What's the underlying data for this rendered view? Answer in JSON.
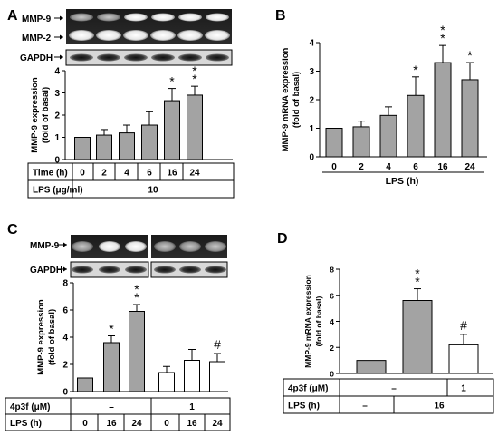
{
  "figure": {
    "panel_letters": [
      "A",
      "B",
      "C",
      "D"
    ],
    "blot_labels": {
      "A": [
        "MMP-9",
        "MMP-2",
        "GAPDH"
      ],
      "C": [
        "MMP-9",
        "GAPDH"
      ]
    }
  },
  "chart_data": [
    {
      "panel": "A",
      "type": "bar",
      "ylabel": "MMP-9 expression\n(fold of basal)",
      "ylim": [
        0,
        4
      ],
      "yticks": [
        "0",
        "1",
        "2",
        "3",
        "4"
      ],
      "categories": [
        "0",
        "2",
        "4",
        "6",
        "16",
        "24"
      ],
      "values": [
        1.0,
        1.1,
        1.2,
        1.55,
        2.65,
        2.9
      ],
      "errors": [
        0,
        0.25,
        0.35,
        0.6,
        0.55,
        0.4
      ],
      "markers": [
        "",
        "",
        "",
        "",
        "*",
        "**"
      ],
      "table": [
        {
          "label": "Time (h)",
          "cells": [
            "0",
            "2",
            "4",
            "6",
            "16",
            "24"
          ]
        },
        {
          "label": "LPS (μg/ml)",
          "cells": [
            "10"
          ]
        }
      ],
      "bar_color": "#a3a3a3"
    },
    {
      "panel": "B",
      "type": "bar",
      "ylabel": "MMP-9 mRNA expression\n(fold of basal)",
      "xlabel": "LPS (h)",
      "ylim": [
        0,
        4
      ],
      "yticks": [
        "0",
        "1",
        "2",
        "3",
        "4"
      ],
      "categories": [
        "0",
        "2",
        "4",
        "6",
        "16",
        "24"
      ],
      "values": [
        1.0,
        1.05,
        1.45,
        2.15,
        3.3,
        2.7
      ],
      "errors": [
        0,
        0.2,
        0.3,
        0.65,
        0.6,
        0.6
      ],
      "markers": [
        "",
        "",
        "",
        "*",
        "**",
        "*"
      ],
      "bar_color": "#a3a3a3"
    },
    {
      "panel": "C",
      "type": "bar",
      "ylabel": "MMP-9 expression\n(fold of basal)",
      "ylim": [
        0,
        8
      ],
      "yticks": [
        "0",
        "2",
        "4",
        "6",
        "8"
      ],
      "categories": [
        "0",
        "16",
        "24",
        "0",
        "16",
        "24"
      ],
      "values": [
        1.0,
        3.6,
        5.9,
        1.4,
        2.3,
        2.2
      ],
      "errors": [
        0,
        0.5,
        0.5,
        0.45,
        0.8,
        0.6
      ],
      "fills": [
        "gray",
        "gray",
        "gray",
        "white",
        "white",
        "white"
      ],
      "markers": [
        "",
        "*",
        "**",
        "",
        "",
        "#"
      ],
      "table": [
        {
          "label": "4p3f (μM)",
          "cells": [
            "–",
            "1"
          ]
        },
        {
          "label": "LPS (h)",
          "cells": [
            "0",
            "16",
            "24",
            "0",
            "16",
            "24"
          ]
        }
      ],
      "bar_color": "#a3a3a3"
    },
    {
      "panel": "D",
      "type": "bar",
      "ylabel": "MMP-9 mRNA expression\n(fold of basal)",
      "ylim": [
        0,
        8
      ],
      "yticks": [
        "0",
        "2",
        "4",
        "6",
        "8"
      ],
      "categories": [
        "",
        "",
        ""
      ],
      "values": [
        1.0,
        5.6,
        2.2
      ],
      "errors": [
        0,
        0.9,
        0.8
      ],
      "fills": [
        "gray",
        "gray",
        "white"
      ],
      "markers": [
        "",
        "**",
        "#"
      ],
      "table": [
        {
          "label": "4p3f (μM)",
          "cells": [
            "–",
            "1"
          ]
        },
        {
          "label": "LPS (h)",
          "cells": [
            "–",
            "16"
          ]
        }
      ],
      "bar_color": "#a3a3a3"
    }
  ]
}
